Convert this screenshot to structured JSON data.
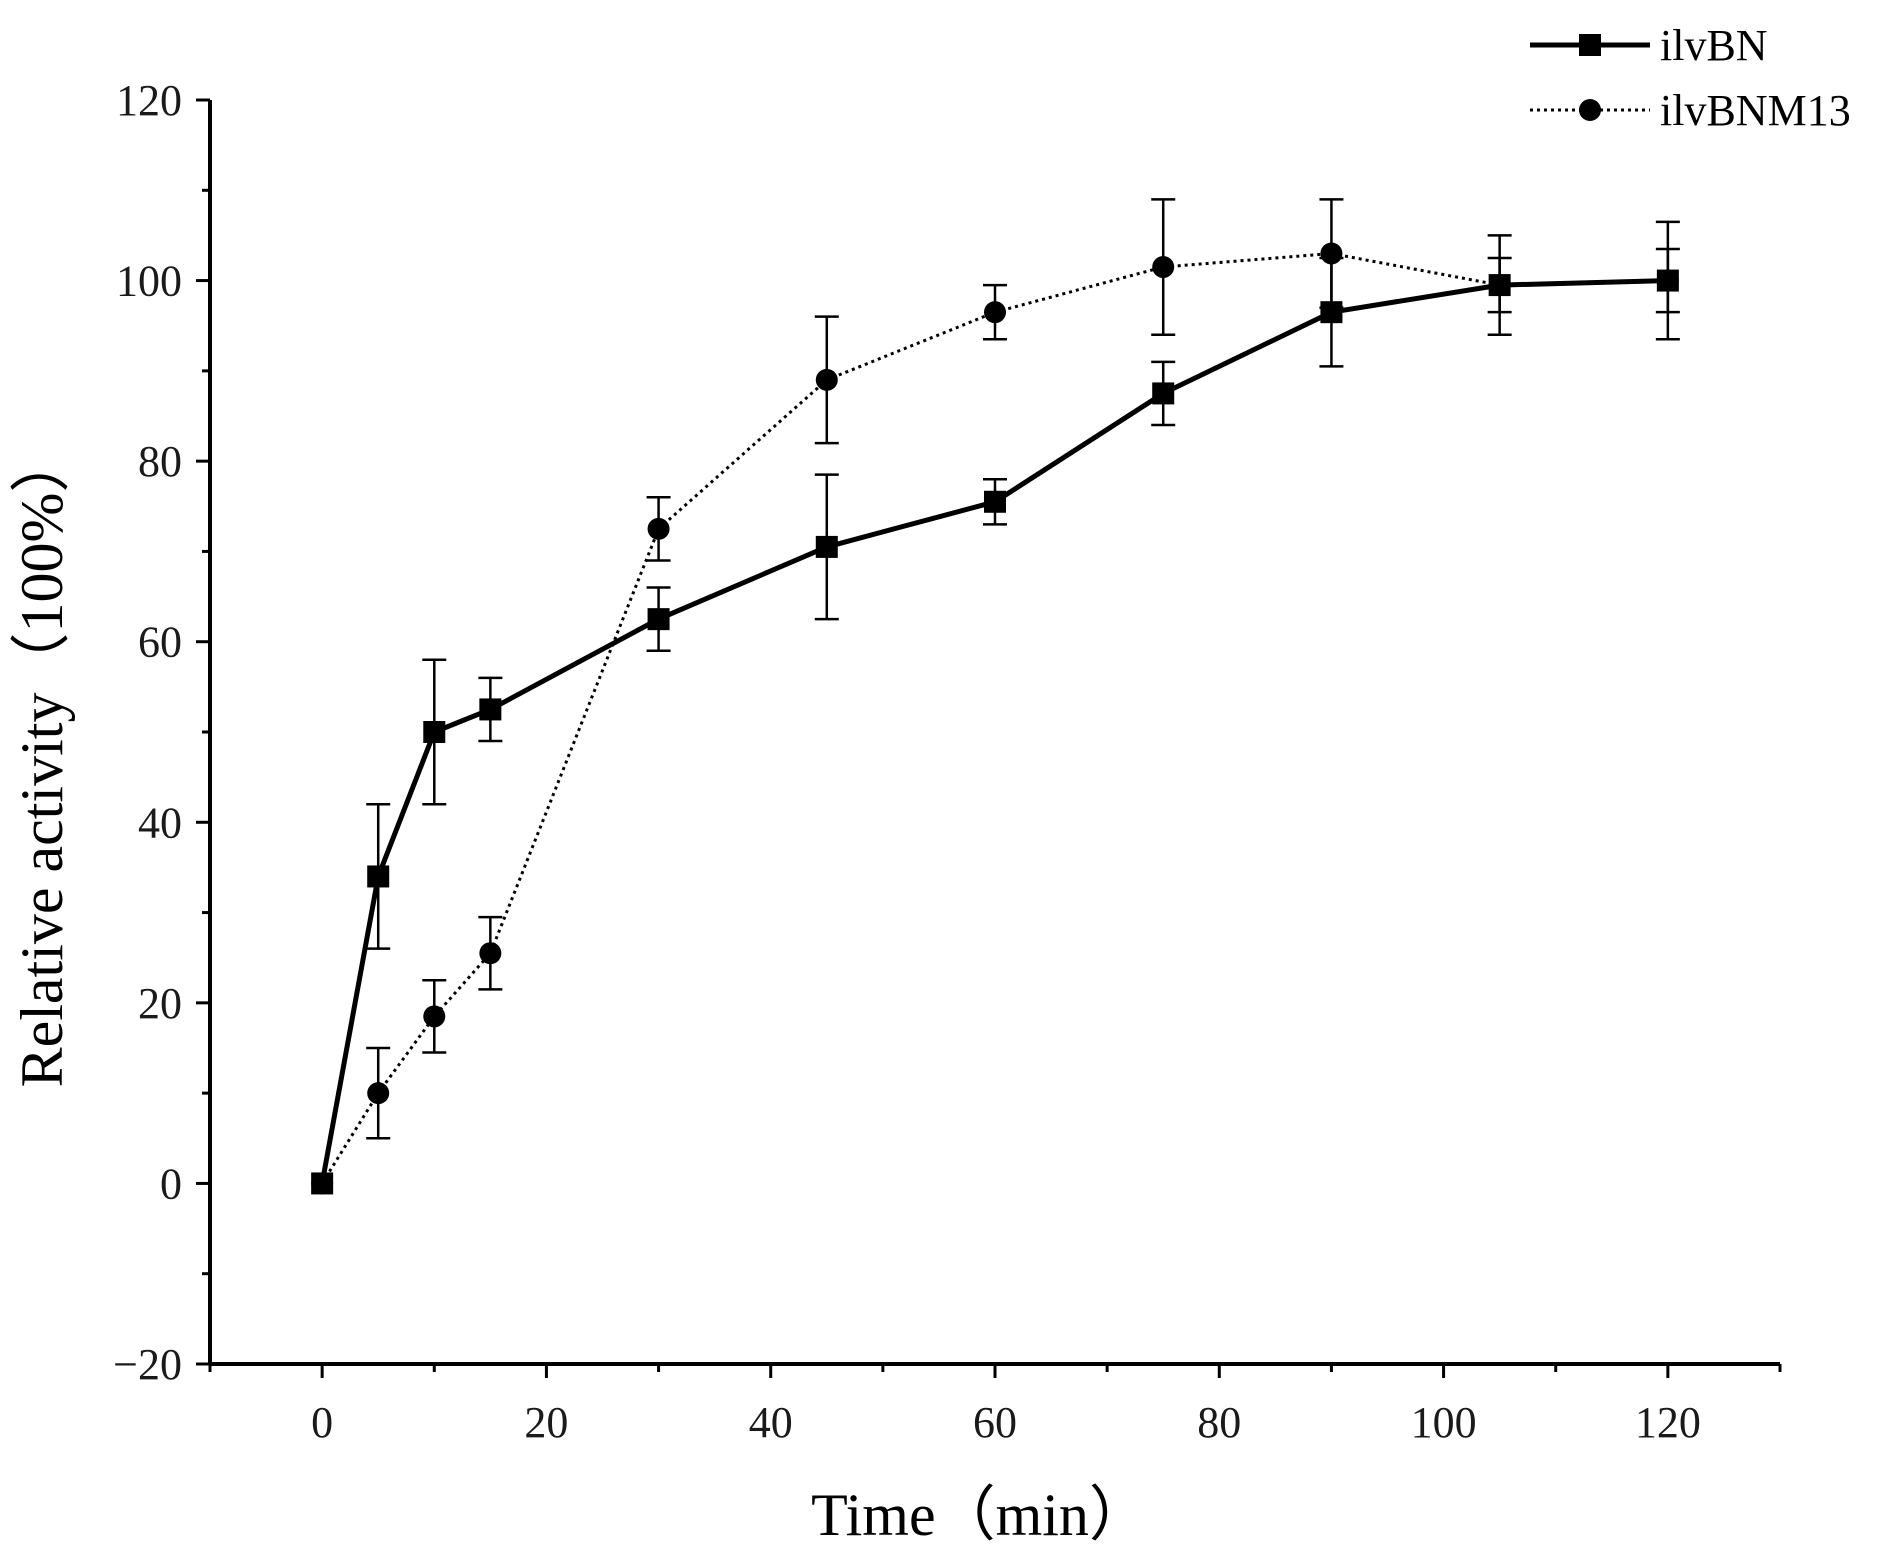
{
  "chart_data": {
    "type": "line",
    "title": "",
    "xlabel": "Time（min）",
    "ylabel": "Relative activity（100%）",
    "xlim": [
      -10,
      130
    ],
    "ylim": [
      -20,
      120
    ],
    "xticks": [
      0,
      20,
      40,
      60,
      80,
      100,
      120
    ],
    "yticks": [
      -20,
      0,
      20,
      40,
      60,
      80,
      100,
      120
    ],
    "xtick_labels": [
      "0",
      "20",
      "40",
      "60",
      "80",
      "100",
      "120"
    ],
    "ytick_labels": [
      "−20",
      "0",
      "20",
      "40",
      "60",
      "80",
      "100",
      "120"
    ],
    "grid": false,
    "legend_position": "top-right",
    "series": [
      {
        "name": "ilvBN",
        "marker": "square",
        "line_style": "solid",
        "x": [
          0,
          5,
          10,
          15,
          30,
          45,
          60,
          75,
          90,
          105,
          120
        ],
        "y": [
          0,
          34,
          50,
          52.5,
          62.5,
          70.5,
          75.5,
          87.5,
          96.5,
          99.5,
          100
        ],
        "error": [
          0,
          8,
          8,
          3.5,
          3.5,
          8,
          2.5,
          3.5,
          6,
          3,
          3.5
        ]
      },
      {
        "name": "ilvBNM13",
        "marker": "circle",
        "line_style": "dotted",
        "x": [
          0,
          5,
          10,
          15,
          30,
          45,
          60,
          75,
          90,
          105,
          120
        ],
        "y": [
          0,
          10,
          18.5,
          25.5,
          72.5,
          89,
          96.5,
          101.5,
          103,
          99.5,
          100
        ],
        "error": [
          0,
          5,
          4,
          4,
          3.5,
          7,
          3,
          7.5,
          6,
          5.5,
          6.5
        ]
      }
    ]
  },
  "colors": {
    "line": "#000000",
    "text": "#1a1a1a"
  }
}
